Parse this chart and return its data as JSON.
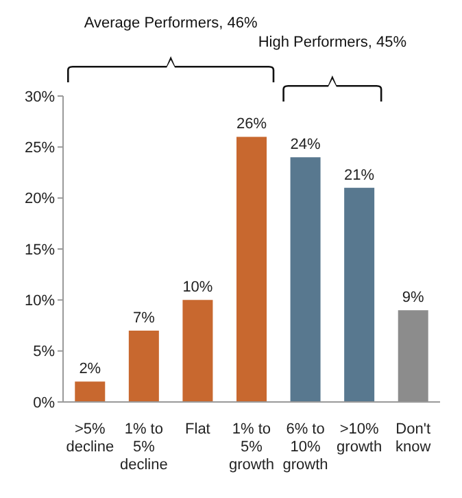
{
  "chart_data": {
    "type": "bar",
    "categories": [
      ">5% decline",
      "1% to 5% decline",
      "Flat",
      "1% to 5% growth",
      "6% to 10% growth",
      ">10% growth",
      "Don't know"
    ],
    "values": [
      2,
      7,
      10,
      26,
      24,
      21,
      9
    ],
    "colors": [
      "#c8682f",
      "#c8682f",
      "#c8682f",
      "#c8682f",
      "#58788f",
      "#58788f",
      "#8c8c8c"
    ],
    "value_labels": [
      "2%",
      "7%",
      "10%",
      "26%",
      "24%",
      "21%",
      "9%"
    ],
    "ylim": [
      0,
      30
    ],
    "yticks": [
      {
        "value": 0,
        "label": "0%"
      },
      {
        "value": 5,
        "label": "5%"
      },
      {
        "value": 10,
        "label": "10%"
      },
      {
        "value": 15,
        "label": "15%"
      },
      {
        "value": 20,
        "label": "20%"
      },
      {
        "value": 25,
        "label": "25%"
      },
      {
        "value": 30,
        "label": "30%"
      }
    ],
    "annotations": [
      "Average Performers, 46%",
      "High Performers, 45%"
    ],
    "grid": false,
    "legend": false
  }
}
